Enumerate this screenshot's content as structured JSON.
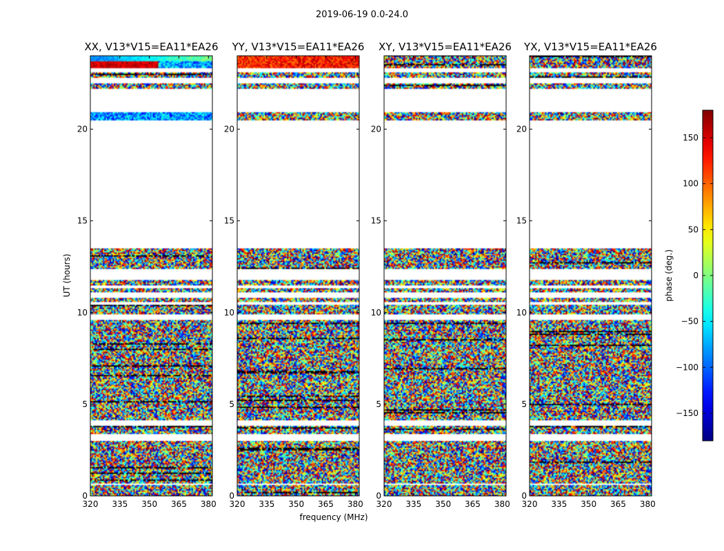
{
  "figure": {
    "suptitle": "2019-06-19 0.0-24.0",
    "xlabel": "frequency (MHz)",
    "ylabel": "UT (hours)",
    "colorbar_label": "phase (deg.)"
  },
  "chart_data": [
    {
      "type": "heatmap",
      "title": "XX, V13*V15=EA11*EA26",
      "kind": "xx"
    },
    {
      "type": "heatmap",
      "title": "YY, V13*V15=EA11*EA26",
      "kind": "yy"
    },
    {
      "type": "heatmap",
      "title": "XY, V13*V15=EA11*EA26",
      "kind": "cross"
    },
    {
      "type": "heatmap",
      "title": "YX, V13*V15=EA11*EA26",
      "kind": "cross"
    }
  ],
  "axes": {
    "xlim": [
      320,
      382
    ],
    "ylim": [
      0,
      24
    ],
    "xticks": [
      320,
      335,
      350,
      365,
      380
    ],
    "yticks": [
      0,
      5,
      10,
      15,
      20
    ],
    "xtick_labels": [
      "320",
      "335",
      "350",
      "365",
      "380"
    ],
    "ytick_labels": [
      "0",
      "5",
      "10",
      "15",
      "20"
    ]
  },
  "data_coverage_ut_hours": [
    [
      0.0,
      0.6
    ],
    [
      0.7,
      3.0
    ],
    [
      3.4,
      3.8
    ],
    [
      4.1,
      9.6
    ],
    [
      9.9,
      10.4
    ],
    [
      10.6,
      10.8
    ],
    [
      11.1,
      11.3
    ],
    [
      11.5,
      11.8
    ],
    [
      12.4,
      13.5
    ],
    [
      20.5,
      20.9
    ],
    [
      22.2,
      22.5
    ],
    [
      22.8,
      23.1
    ],
    [
      23.3,
      24.0
    ]
  ],
  "colorbar": {
    "min": -180,
    "max": 180,
    "ticks": [
      150,
      100,
      50,
      0,
      -50,
      -100,
      -150
    ],
    "tick_labels": [
      "150",
      "100",
      "50",
      "0",
      "−50",
      "−100",
      "−150"
    ],
    "colormap": "jet"
  }
}
